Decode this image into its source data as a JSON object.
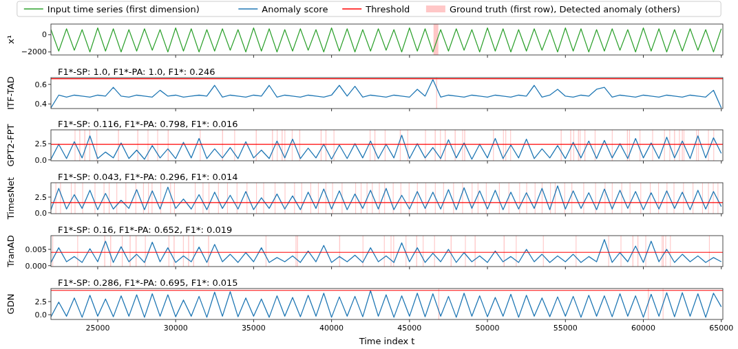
{
  "chart_data": [
    {
      "type": "line",
      "ylabel": "x¹",
      "legend": "top",
      "tick_labels": "y",
      "xlim": [
        22000,
        65100
      ],
      "ylim": [
        -2350,
        1250
      ],
      "yticks": [
        {
          "value": -2000,
          "label": "−2000"
        },
        0
      ],
      "xticks": [
        25000,
        30000,
        35000,
        40000,
        45000,
        50000,
        55000,
        60000,
        65000
      ],
      "x": [
        22000,
        22500,
        23000,
        23500,
        24000,
        24500,
        25000,
        25500,
        26000,
        26500,
        27000,
        27500,
        28000,
        28500,
        29000,
        29500,
        30000,
        30500,
        31000,
        31500,
        32000,
        32500,
        33000,
        33500,
        34000,
        34500,
        35000,
        35500,
        36000,
        36500,
        37000,
        37500,
        38000,
        38500,
        39000,
        39500,
        40000,
        40500,
        41000,
        41500,
        42000,
        42500,
        43000,
        43500,
        44000,
        44500,
        45000,
        45500,
        46000,
        46500,
        47000,
        47500,
        48000,
        48500,
        49000,
        49500,
        50000,
        50500,
        51000,
        51500,
        52000,
        52500,
        53000,
        53500,
        54000,
        54500,
        55000,
        55500,
        56000,
        56500,
        57000,
        57500,
        58000,
        58500,
        59000,
        59500,
        60000,
        60500,
        61000,
        61500,
        62000,
        62500,
        63000,
        63500,
        64000,
        64500,
        65000
      ],
      "series": [
        {
          "name": "Input time series (first dimension)",
          "color": "#2ca02c",
          "values": [
            600,
            -1900,
            700,
            -1800,
            600,
            -2000,
            800,
            -1900,
            700,
            -2000,
            600,
            -1900,
            700,
            -1800,
            600,
            -2000,
            800,
            -1900,
            700,
            -2000,
            600,
            -1900,
            700,
            -1800,
            600,
            -2000,
            800,
            -1900,
            700,
            -2000,
            600,
            -1900,
            700,
            -1800,
            600,
            -2000,
            800,
            -1900,
            700,
            -2000,
            600,
            -1900,
            700,
            -1800,
            600,
            -2000,
            800,
            -1900,
            700,
            -2000,
            600,
            -1900,
            700,
            -1800,
            600,
            -2000,
            800,
            -1900,
            700,
            -2000,
            600,
            -1900,
            700,
            -1800,
            600,
            -2000,
            800,
            -1900,
            700,
            -2000,
            600,
            -1900,
            700,
            -1800,
            600,
            -2000,
            800,
            -1900,
            700,
            -2000,
            600,
            -1900,
            700,
            -1800,
            600,
            -2000,
            700
          ]
        }
      ],
      "bands": [
        {
          "axis": "x",
          "from": 46540,
          "to": 46850,
          "label": "Ground truth (first row), Detected anomaly (others)"
        }
      ]
    },
    {
      "type": "line",
      "title": "F1*-SP: 1.0, F1*-PA: 1.0, F1*: 0.246",
      "ylabel": "ITF-TAD",
      "legend": "top",
      "tick_labels": "y",
      "xlim": [
        22000,
        65100
      ],
      "ylim": [
        0.353,
        0.669
      ],
      "yticks": [
        0.4,
        0.6
      ],
      "xticks": [
        25000,
        30000,
        35000,
        40000,
        45000,
        50000,
        55000,
        60000,
        65000
      ],
      "x": [
        22000,
        22500,
        23000,
        23500,
        24000,
        24500,
        25000,
        25500,
        26000,
        26500,
        27000,
        27500,
        28000,
        28500,
        29000,
        29500,
        30000,
        30500,
        31000,
        31500,
        32000,
        32500,
        33000,
        33500,
        34000,
        34500,
        35000,
        35500,
        36000,
        36500,
        37000,
        37500,
        38000,
        38500,
        39000,
        39500,
        40000,
        40500,
        41000,
        41500,
        42000,
        42500,
        43000,
        43500,
        44000,
        44500,
        45000,
        45500,
        46000,
        46500,
        47000,
        47500,
        48000,
        48500,
        49000,
        49500,
        50000,
        50500,
        51000,
        51500,
        52000,
        52500,
        53000,
        53500,
        54000,
        54500,
        55000,
        55500,
        56000,
        56500,
        57000,
        57500,
        58000,
        58500,
        59000,
        59500,
        60000,
        60500,
        61000,
        61500,
        62000,
        62500,
        63000,
        63500,
        64000,
        64500,
        65000
      ],
      "series": [
        {
          "name": "Anomaly score",
          "color": "#1f77b4",
          "values": [
            0.36,
            0.49,
            0.47,
            0.49,
            0.48,
            0.47,
            0.49,
            0.48,
            0.57,
            0.48,
            0.47,
            0.49,
            0.48,
            0.47,
            0.54,
            0.48,
            0.49,
            0.47,
            0.48,
            0.49,
            0.48,
            0.59,
            0.47,
            0.49,
            0.48,
            0.47,
            0.49,
            0.48,
            0.59,
            0.47,
            0.49,
            0.48,
            0.47,
            0.49,
            0.48,
            0.47,
            0.49,
            0.59,
            0.48,
            0.58,
            0.47,
            0.49,
            0.48,
            0.47,
            0.49,
            0.48,
            0.47,
            0.55,
            0.48,
            0.65,
            0.47,
            0.49,
            0.48,
            0.47,
            0.49,
            0.48,
            0.47,
            0.49,
            0.48,
            0.47,
            0.49,
            0.48,
            0.59,
            0.47,
            0.49,
            0.55,
            0.48,
            0.47,
            0.49,
            0.48,
            0.55,
            0.57,
            0.47,
            0.49,
            0.48,
            0.47,
            0.49,
            0.48,
            0.47,
            0.49,
            0.48,
            0.47,
            0.49,
            0.48,
            0.47,
            0.54,
            0.36
          ]
        }
      ],
      "ref_lines": [
        {
          "axis": "y",
          "value": 0.657,
          "label": "Threshold",
          "color": "#ff0000"
        }
      ],
      "bands": [
        {
          "axis": "x",
          "from": 46710,
          "to": 46770
        }
      ]
    },
    {
      "type": "line",
      "title": "F1*-SP: 0.116, F1*-PA: 0.798, F1*: 0.016",
      "ylabel": "GPT2-FPT",
      "tick_labels": "y",
      "xlim": [
        22000,
        65100
      ],
      "ylim": [
        -0.14,
        4.63
      ],
      "yticks": [
        {
          "value": 0,
          "label": "0.0"
        },
        2.5
      ],
      "xticks": [
        25000,
        30000,
        35000,
        40000,
        45000,
        50000,
        55000,
        60000,
        65000
      ],
      "x": [
        22000,
        22500,
        23000,
        23500,
        24000,
        24500,
        25000,
        25500,
        26000,
        26500,
        27000,
        27500,
        28000,
        28500,
        29000,
        29500,
        30000,
        30500,
        31000,
        31500,
        32000,
        32500,
        33000,
        33500,
        34000,
        34500,
        35000,
        35500,
        36000,
        36500,
        37000,
        37500,
        38000,
        38500,
        39000,
        39500,
        40000,
        40500,
        41000,
        41500,
        42000,
        42500,
        43000,
        43500,
        44000,
        44500,
        45000,
        45500,
        46000,
        46500,
        47000,
        47500,
        48000,
        48500,
        49000,
        49500,
        50000,
        50500,
        51000,
        51500,
        52000,
        52500,
        53000,
        53500,
        54000,
        54500,
        55000,
        55500,
        56000,
        56500,
        57000,
        57500,
        58000,
        58500,
        59000,
        59500,
        60000,
        60500,
        61000,
        61500,
        62000,
        62500,
        63000,
        63500,
        64000,
        64500,
        65000
      ],
      "series": [
        {
          "color": "#1f77b4",
          "values": [
            0.1,
            2.4,
            0.2,
            2.8,
            0.3,
            3.7,
            0.2,
            1.2,
            0.3,
            2.6,
            0.2,
            1.5,
            0.1,
            2.2,
            0.3,
            1.7,
            0.2,
            2.7,
            0.3,
            3.3,
            0.2,
            1.7,
            0.3,
            1.9,
            0.2,
            2.8,
            0.3,
            1.5,
            0.2,
            2.9,
            0.3,
            3.2,
            0.2,
            1.8,
            0.3,
            2.4,
            0.1,
            2.3,
            0.2,
            2.5,
            0.3,
            2.9,
            0.2,
            2.4,
            0.3,
            3.8,
            0.2,
            2.5,
            0.3,
            1.9,
            0.2,
            3.1,
            0.3,
            2.6,
            0.1,
            2.4,
            0.3,
            3.3,
            0.2,
            2.3,
            0.3,
            3.2,
            0.2,
            1.7,
            0.3,
            2.2,
            0.2,
            2.7,
            0.3,
            2.9,
            0.2,
            3.0,
            0.3,
            2.5,
            0.2,
            3.3,
            0.3,
            2.6,
            0.2,
            3.5,
            0.3,
            2.9,
            0.2,
            3.7,
            0.3,
            3.4,
            1.0
          ]
        }
      ],
      "ref_lines": [
        {
          "axis": "y",
          "value": 2.4,
          "color": "#ff0000"
        }
      ],
      "bands": [
        {
          "axis": "x",
          "from": 23520,
          "to": 23570
        },
        {
          "axis": "x",
          "from": 23820,
          "to": 23880
        },
        {
          "axis": "x",
          "from": 24140,
          "to": 24200
        },
        {
          "axis": "x",
          "from": 24460,
          "to": 24520
        },
        {
          "axis": "x",
          "from": 24920,
          "to": 24970
        },
        {
          "axis": "x",
          "from": 26300,
          "to": 26360
        },
        {
          "axis": "x",
          "from": 27540,
          "to": 27600
        },
        {
          "axis": "x",
          "from": 28200,
          "to": 28250
        },
        {
          "axis": "x",
          "from": 28820,
          "to": 28870
        },
        {
          "axis": "x",
          "from": 29490,
          "to": 29550
        },
        {
          "axis": "x",
          "from": 31550,
          "to": 31600
        },
        {
          "axis": "x",
          "from": 32980,
          "to": 33040
        },
        {
          "axis": "x",
          "from": 33760,
          "to": 33810
        },
        {
          "axis": "x",
          "from": 35140,
          "to": 35200
        },
        {
          "axis": "x",
          "from": 36180,
          "to": 36240
        },
        {
          "axis": "x",
          "from": 36490,
          "to": 36540
        },
        {
          "axis": "x",
          "from": 36800,
          "to": 36860
        },
        {
          "axis": "x",
          "from": 36980,
          "to": 37030
        },
        {
          "axis": "x",
          "from": 37450,
          "to": 37500
        },
        {
          "axis": "x",
          "from": 37930,
          "to": 37990
        },
        {
          "axis": "x",
          "from": 39300,
          "to": 39360
        },
        {
          "axis": "x",
          "from": 39610,
          "to": 39670
        },
        {
          "axis": "x",
          "from": 40130,
          "to": 40180
        },
        {
          "axis": "x",
          "from": 42450,
          "to": 42500
        },
        {
          "axis": "x",
          "from": 42750,
          "to": 42810
        },
        {
          "axis": "x",
          "from": 43410,
          "to": 43460
        },
        {
          "axis": "x",
          "from": 44380,
          "to": 44440
        },
        {
          "axis": "x",
          "from": 44860,
          "to": 44910
        },
        {
          "axis": "x",
          "from": 46000,
          "to": 46050
        },
        {
          "axis": "x",
          "from": 46620,
          "to": 46680
        },
        {
          "axis": "x",
          "from": 46960,
          "to": 47010
        },
        {
          "axis": "x",
          "from": 47260,
          "to": 47320
        },
        {
          "axis": "x",
          "from": 47900,
          "to": 47960
        },
        {
          "axis": "x",
          "from": 48380,
          "to": 48430
        },
        {
          "axis": "x",
          "from": 48510,
          "to": 48570
        },
        {
          "axis": "x",
          "from": 50360,
          "to": 50410
        },
        {
          "axis": "x",
          "from": 51000,
          "to": 51050
        },
        {
          "axis": "x",
          "from": 51150,
          "to": 51200
        },
        {
          "axis": "x",
          "from": 51460,
          "to": 51510
        },
        {
          "axis": "x",
          "from": 54700,
          "to": 54760
        },
        {
          "axis": "x",
          "from": 55310,
          "to": 55370
        },
        {
          "axis": "x",
          "from": 55510,
          "to": 55560
        },
        {
          "axis": "x",
          "from": 55810,
          "to": 55870
        },
        {
          "axis": "x",
          "from": 55920,
          "to": 55970
        },
        {
          "axis": "x",
          "from": 56220,
          "to": 56280
        },
        {
          "axis": "x",
          "from": 56880,
          "to": 56930
        },
        {
          "axis": "x",
          "from": 57980,
          "to": 58030
        },
        {
          "axis": "x",
          "from": 58950,
          "to": 59010
        },
        {
          "axis": "x",
          "from": 59090,
          "to": 59140
        },
        {
          "axis": "x",
          "from": 59760,
          "to": 59810
        },
        {
          "axis": "x",
          "from": 60570,
          "to": 60620
        },
        {
          "axis": "x",
          "from": 61330,
          "to": 61380
        },
        {
          "axis": "x",
          "from": 61670,
          "to": 61720
        },
        {
          "axis": "x",
          "from": 61970,
          "to": 62030
        },
        {
          "axis": "x",
          "from": 62290,
          "to": 62340
        },
        {
          "axis": "x",
          "from": 62470,
          "to": 62530
        },
        {
          "axis": "x",
          "from": 62580,
          "to": 62630
        },
        {
          "axis": "x",
          "from": 63390,
          "to": 63440
        },
        {
          "axis": "x",
          "from": 63510,
          "to": 63560
        },
        {
          "axis": "x",
          "from": 64150,
          "to": 64200
        },
        {
          "axis": "x",
          "from": 64490,
          "to": 64540
        }
      ]
    },
    {
      "type": "line",
      "title": "F1*-SP: 0.043, F1*-PA: 0.296, F1*: 0.014",
      "ylabel": "TimesNet",
      "tick_labels": "y",
      "xlim": [
        22000,
        65100
      ],
      "ylim": [
        -0.14,
        4.8
      ],
      "yticks": [
        {
          "value": 0,
          "label": "0.0"
        },
        2.5
      ],
      "xticks": [
        25000,
        30000,
        35000,
        40000,
        45000,
        50000,
        55000,
        60000,
        65000
      ],
      "x": [
        22000,
        22500,
        23000,
        23500,
        24000,
        24500,
        25000,
        25500,
        26000,
        26500,
        27000,
        27500,
        28000,
        28500,
        29000,
        29500,
        30000,
        30500,
        31000,
        31500,
        32000,
        32500,
        33000,
        33500,
        34000,
        34500,
        35000,
        35500,
        36000,
        36500,
        37000,
        37500,
        38000,
        38500,
        39000,
        39500,
        40000,
        40500,
        41000,
        41500,
        42000,
        42500,
        43000,
        43500,
        44000,
        44500,
        45000,
        45500,
        46000,
        46500,
        47000,
        47500,
        48000,
        48500,
        49000,
        49500,
        50000,
        50500,
        51000,
        51500,
        52000,
        52500,
        53000,
        53500,
        54000,
        54500,
        55000,
        55500,
        56000,
        56500,
        57000,
        57500,
        58000,
        58500,
        59000,
        59500,
        60000,
        60500,
        61000,
        61500,
        62000,
        62500,
        63000,
        63500,
        64000,
        64500,
        65000
      ],
      "series": [
        {
          "color": "#1f77b4",
          "values": [
            0.5,
            3.9,
            0.6,
            2.9,
            0.7,
            3.6,
            0.5,
            3.1,
            0.6,
            2.0,
            0.7,
            3.7,
            0.5,
            3.5,
            0.6,
            4.1,
            0.7,
            2.2,
            0.6,
            2.9,
            0.5,
            3.3,
            0.7,
            2.8,
            0.6,
            3.4,
            0.5,
            2.4,
            0.7,
            3.0,
            0.6,
            2.7,
            0.5,
            3.3,
            0.7,
            3.8,
            0.6,
            3.5,
            0.5,
            3.0,
            0.7,
            3.6,
            0.6,
            3.9,
            0.5,
            2.8,
            0.6,
            3.4,
            0.7,
            3.3,
            0.6,
            3.7,
            0.5,
            4.0,
            0.7,
            3.5,
            0.6,
            3.6,
            0.5,
            3.3,
            0.6,
            3.2,
            0.7,
            3.9,
            0.5,
            4.3,
            0.6,
            3.5,
            0.7,
            3.2,
            0.5,
            3.8,
            0.6,
            3.6,
            0.7,
            3.4,
            0.5,
            3.2,
            0.6,
            3.5,
            0.7,
            3.3,
            0.5,
            3.6,
            0.6,
            3.4,
            1.0
          ]
        }
      ],
      "ref_lines": [
        {
          "axis": "y",
          "value": 1.63,
          "color": "#ff0000"
        }
      ],
      "bands": [
        {
          "axis": "x",
          "from": 22290,
          "to": 22340
        },
        {
          "axis": "x",
          "from": 22590,
          "to": 22640
        },
        {
          "axis": "x",
          "from": 23280,
          "to": 23330
        },
        {
          "axis": "x",
          "from": 23520,
          "to": 23570
        },
        {
          "axis": "x",
          "from": 24010,
          "to": 24060
        },
        {
          "axis": "x",
          "from": 24800,
          "to": 24850
        },
        {
          "axis": "x",
          "from": 25380,
          "to": 25430
        },
        {
          "axis": "x",
          "from": 25710,
          "to": 25760
        },
        {
          "axis": "x",
          "from": 26200,
          "to": 26250
        },
        {
          "axis": "x",
          "from": 26780,
          "to": 26830
        },
        {
          "axis": "x",
          "from": 27420,
          "to": 27470
        },
        {
          "axis": "x",
          "from": 27910,
          "to": 27960
        },
        {
          "axis": "x",
          "from": 28230,
          "to": 28280
        },
        {
          "axis": "x",
          "from": 28460,
          "to": 28510
        },
        {
          "axis": "x",
          "from": 29020,
          "to": 29070
        },
        {
          "axis": "x",
          "from": 29650,
          "to": 29700
        },
        {
          "axis": "x",
          "from": 29900,
          "to": 29950
        },
        {
          "axis": "x",
          "from": 31230,
          "to": 31280
        },
        {
          "axis": "x",
          "from": 31730,
          "to": 31780
        },
        {
          "axis": "x",
          "from": 32110,
          "to": 32160
        },
        {
          "axis": "x",
          "from": 32720,
          "to": 32770
        },
        {
          "axis": "x",
          "from": 33300,
          "to": 33350
        },
        {
          "axis": "x",
          "from": 33910,
          "to": 33960
        },
        {
          "axis": "x",
          "from": 34550,
          "to": 34600
        },
        {
          "axis": "x",
          "from": 35160,
          "to": 35210
        },
        {
          "axis": "x",
          "from": 35620,
          "to": 35670
        },
        {
          "axis": "x",
          "from": 36350,
          "to": 36400
        },
        {
          "axis": "x",
          "from": 36990,
          "to": 37040
        },
        {
          "axis": "x",
          "from": 37600,
          "to": 37650
        },
        {
          "axis": "x",
          "from": 38060,
          "to": 38110
        },
        {
          "axis": "x",
          "from": 38640,
          "to": 38690
        },
        {
          "axis": "x",
          "from": 39130,
          "to": 39180
        },
        {
          "axis": "x",
          "from": 39610,
          "to": 39660
        },
        {
          "axis": "x",
          "from": 40040,
          "to": 40090
        },
        {
          "axis": "x",
          "from": 40650,
          "to": 40700
        },
        {
          "axis": "x",
          "from": 41520,
          "to": 41570
        },
        {
          "axis": "x",
          "from": 41870,
          "to": 41920
        },
        {
          "axis": "x",
          "from": 42250,
          "to": 42300
        },
        {
          "axis": "x",
          "from": 42590,
          "to": 42640
        },
        {
          "axis": "x",
          "from": 43040,
          "to": 43090
        },
        {
          "axis": "x",
          "from": 43380,
          "to": 43430
        },
        {
          "axis": "x",
          "from": 43930,
          "to": 43980
        },
        {
          "axis": "x",
          "from": 44420,
          "to": 44470
        },
        {
          "axis": "x",
          "from": 44950,
          "to": 45000
        },
        {
          "axis": "x",
          "from": 45480,
          "to": 45530
        },
        {
          "axis": "x",
          "from": 46020,
          "to": 46070
        },
        {
          "axis": "x",
          "from": 46630,
          "to": 46680
        },
        {
          "axis": "x",
          "from": 47160,
          "to": 47210
        },
        {
          "axis": "x",
          "from": 47800,
          "to": 47850
        },
        {
          "axis": "x",
          "from": 48380,
          "to": 48430
        },
        {
          "axis": "x",
          "from": 48990,
          "to": 49040
        },
        {
          "axis": "x",
          "from": 49370,
          "to": 49420
        },
        {
          "axis": "x",
          "from": 49900,
          "to": 49950
        },
        {
          "axis": "x",
          "from": 50740,
          "to": 50790
        },
        {
          "axis": "x",
          "from": 51350,
          "to": 51400
        },
        {
          "axis": "x",
          "from": 52040,
          "to": 52090
        },
        {
          "axis": "x",
          "from": 52490,
          "to": 52540
        },
        {
          "axis": "x",
          "from": 53030,
          "to": 53080
        },
        {
          "axis": "x",
          "from": 53480,
          "to": 53530
        },
        {
          "axis": "x",
          "from": 54020,
          "to": 54070
        },
        {
          "axis": "x",
          "from": 54320,
          "to": 54370
        },
        {
          "axis": "x",
          "from": 54930,
          "to": 54980
        },
        {
          "axis": "x",
          "from": 55390,
          "to": 55440
        },
        {
          "axis": "x",
          "from": 56150,
          "to": 56200
        },
        {
          "axis": "x",
          "from": 56910,
          "to": 56960
        },
        {
          "axis": "x",
          "from": 57520,
          "to": 57570
        },
        {
          "axis": "x",
          "from": 57980,
          "to": 58030
        },
        {
          "axis": "x",
          "from": 58590,
          "to": 58640
        },
        {
          "axis": "x",
          "from": 59120,
          "to": 59170
        },
        {
          "axis": "x",
          "from": 59810,
          "to": 59860
        },
        {
          "axis": "x",
          "from": 60420,
          "to": 60470
        },
        {
          "axis": "x",
          "from": 60950,
          "to": 61000
        },
        {
          "axis": "x",
          "from": 61490,
          "to": 61540
        },
        {
          "axis": "x",
          "from": 61940,
          "to": 61990
        },
        {
          "axis": "x",
          "from": 62550,
          "to": 62600
        },
        {
          "axis": "x",
          "from": 63160,
          "to": 63210
        },
        {
          "axis": "x",
          "from": 63770,
          "to": 63820
        },
        {
          "axis": "x",
          "from": 64150,
          "to": 64200
        },
        {
          "axis": "x",
          "from": 64460,
          "to": 64510
        },
        {
          "axis": "x",
          "from": 64760,
          "to": 64810
        }
      ]
    },
    {
      "type": "line",
      "title": "F1*-SP: 0.16, F1*-PA: 0.652, F1*: 0.019",
      "ylabel": "TranAD",
      "tick_labels": "y",
      "xlim": [
        22000,
        65100
      ],
      "ylim": [
        -0.00027,
        0.0092
      ],
      "yticks": [
        {
          "value": 0,
          "label": "0.000"
        },
        {
          "value": 0.005,
          "label": "0.005"
        }
      ],
      "xticks": [
        25000,
        30000,
        35000,
        40000,
        45000,
        50000,
        55000,
        60000,
        65000
      ],
      "x": [
        22000,
        22500,
        23000,
        23500,
        24000,
        24500,
        25000,
        25500,
        26000,
        26500,
        27000,
        27500,
        28000,
        28500,
        29000,
        29500,
        30000,
        30500,
        31000,
        31500,
        32000,
        32500,
        33000,
        33500,
        34000,
        34500,
        35000,
        35500,
        36000,
        36500,
        37000,
        37500,
        38000,
        38500,
        39000,
        39500,
        40000,
        40500,
        41000,
        41500,
        42000,
        42500,
        43000,
        43500,
        44000,
        44500,
        45000,
        45500,
        46000,
        46500,
        47000,
        47500,
        48000,
        48500,
        49000,
        49500,
        50000,
        50500,
        51000,
        51500,
        52000,
        52500,
        53000,
        53500,
        54000,
        54500,
        55000,
        55500,
        56000,
        56500,
        57000,
        57500,
        58000,
        58500,
        59000,
        59500,
        60000,
        60500,
        61000,
        61500,
        62000,
        62500,
        63000,
        63500,
        64000,
        64500,
        65000
      ],
      "series": [
        {
          "color": "#1f77b4",
          "values": [
            0.001,
            0.0055,
            0.0012,
            0.0028,
            0.001,
            0.0052,
            0.0012,
            0.0075,
            0.001,
            0.0058,
            0.0012,
            0.0035,
            0.001,
            0.0072,
            0.0012,
            0.0055,
            0.001,
            0.003,
            0.0012,
            0.0057,
            0.001,
            0.0065,
            0.0012,
            0.0035,
            0.001,
            0.004,
            0.0012,
            0.0055,
            0.001,
            0.0025,
            0.0012,
            0.003,
            0.001,
            0.0045,
            0.0012,
            0.0062,
            0.001,
            0.0028,
            0.0012,
            0.0032,
            0.001,
            0.0055,
            0.0012,
            0.003,
            0.001,
            0.007,
            0.0012,
            0.0055,
            0.001,
            0.0038,
            0.0012,
            0.005,
            0.001,
            0.004,
            0.0012,
            0.003,
            0.001,
            0.0045,
            0.0012,
            0.0028,
            0.001,
            0.005,
            0.0012,
            0.0035,
            0.001,
            0.003,
            0.0012,
            0.0035,
            0.001,
            0.0028,
            0.0012,
            0.008,
            0.001,
            0.004,
            0.0012,
            0.006,
            0.001,
            0.0075,
            0.0012,
            0.005,
            0.001,
            0.0035,
            0.0012,
            0.003,
            0.001,
            0.0025,
            0.0012
          ]
        }
      ],
      "ref_lines": [
        {
          "axis": "y",
          "value": 0.0041,
          "color": "#ff0000"
        }
      ],
      "bands": [
        {
          "axis": "x",
          "from": 22090,
          "to": 22140
        },
        {
          "axis": "x",
          "from": 23690,
          "to": 23740
        },
        {
          "axis": "x",
          "from": 25420,
          "to": 25480
        },
        {
          "axis": "x",
          "from": 25800,
          "to": 25860
        },
        {
          "axis": "x",
          "from": 26550,
          "to": 26600
        },
        {
          "axis": "x",
          "from": 27050,
          "to": 27110
        },
        {
          "axis": "x",
          "from": 27430,
          "to": 27490
        },
        {
          "axis": "x",
          "from": 28030,
          "to": 28080
        },
        {
          "axis": "x",
          "from": 29540,
          "to": 29590
        },
        {
          "axis": "x",
          "from": 29870,
          "to": 29930
        },
        {
          "axis": "x",
          "from": 30470,
          "to": 30520
        },
        {
          "axis": "x",
          "from": 30800,
          "to": 30860
        },
        {
          "axis": "x",
          "from": 31120,
          "to": 31180
        },
        {
          "axis": "x",
          "from": 32080,
          "to": 32140
        },
        {
          "axis": "x",
          "from": 35770,
          "to": 35820
        },
        {
          "axis": "x",
          "from": 37690,
          "to": 37740
        },
        {
          "axis": "x",
          "from": 37780,
          "to": 37840
        },
        {
          "axis": "x",
          "from": 40490,
          "to": 40550
        },
        {
          "axis": "x",
          "from": 41990,
          "to": 42040
        },
        {
          "axis": "x",
          "from": 43360,
          "to": 43410
        },
        {
          "axis": "x",
          "from": 43790,
          "to": 43840
        },
        {
          "axis": "x",
          "from": 43960,
          "to": 44010
        },
        {
          "axis": "x",
          "from": 44750,
          "to": 44800
        },
        {
          "axis": "x",
          "from": 45430,
          "to": 45490
        },
        {
          "axis": "x",
          "from": 45850,
          "to": 45900
        },
        {
          "axis": "x",
          "from": 46580,
          "to": 46630
        },
        {
          "axis": "x",
          "from": 47640,
          "to": 47700
        },
        {
          "axis": "x",
          "from": 48560,
          "to": 48610
        },
        {
          "axis": "x",
          "from": 49180,
          "to": 49240
        },
        {
          "axis": "x",
          "from": 51040,
          "to": 51100
        },
        {
          "axis": "x",
          "from": 51820,
          "to": 51870
        },
        {
          "axis": "x",
          "from": 53560,
          "to": 53610
        },
        {
          "axis": "x",
          "from": 55660,
          "to": 55710
        },
        {
          "axis": "x",
          "from": 57750,
          "to": 57800
        },
        {
          "axis": "x",
          "from": 58540,
          "to": 58590
        },
        {
          "axis": "x",
          "from": 59300,
          "to": 59360
        },
        {
          "axis": "x",
          "from": 59620,
          "to": 59680
        },
        {
          "axis": "x",
          "from": 60130,
          "to": 60180
        },
        {
          "axis": "x",
          "from": 61180,
          "to": 61230
        },
        {
          "axis": "x",
          "from": 61255,
          "to": 61305
        },
        {
          "axis": "x",
          "from": 61410,
          "to": 61460
        },
        {
          "axis": "x",
          "from": 61710,
          "to": 61760
        },
        {
          "axis": "x",
          "from": 64210,
          "to": 64260
        }
      ]
    },
    {
      "type": "line",
      "title": "F1*-SP: 0.286, F1*-PA: 0.695, F1*: 0.015",
      "ylabel": "GDN",
      "xlabel": "Time index t",
      "xlim": [
        22000,
        65100
      ],
      "ylim": [
        -0.91,
        4.99
      ],
      "yticks": [
        {
          "value": 0,
          "label": "0.0"
        },
        2.5
      ],
      "xticks": [
        25000,
        30000,
        35000,
        40000,
        45000,
        50000,
        55000,
        60000,
        65000
      ],
      "x": [
        22000,
        22500,
        23000,
        23500,
        24000,
        24500,
        25000,
        25500,
        26000,
        26500,
        27000,
        27500,
        28000,
        28500,
        29000,
        29500,
        30000,
        30500,
        31000,
        31500,
        32000,
        32500,
        33000,
        33500,
        34000,
        34500,
        35000,
        35500,
        36000,
        36500,
        37000,
        37500,
        38000,
        38500,
        39000,
        39500,
        40000,
        40500,
        41000,
        41500,
        42000,
        42500,
        43000,
        43500,
        44000,
        44500,
        45000,
        45500,
        46000,
        46500,
        47000,
        47500,
        48000,
        48500,
        49000,
        49500,
        50000,
        50500,
        51000,
        51500,
        52000,
        52500,
        53000,
        53500,
        54000,
        54500,
        55000,
        55500,
        56000,
        56500,
        57000,
        57500,
        58000,
        58500,
        59000,
        59500,
        60000,
        60500,
        61000,
        61500,
        62000,
        62500,
        63000,
        63500,
        64000,
        64500,
        65000
      ],
      "series": [
        {
          "color": "#1f77b4",
          "values": [
            -0.4,
            2.4,
            -0.3,
            3.2,
            -0.5,
            3.7,
            -0.3,
            3.0,
            -0.4,
            3.6,
            -0.3,
            3.8,
            -0.5,
            4.0,
            -0.3,
            3.8,
            -0.4,
            2.8,
            -0.3,
            3.5,
            -0.5,
            4.3,
            -0.3,
            4.4,
            -0.4,
            3.2,
            -0.3,
            3.0,
            -0.5,
            3.6,
            -0.3,
            3.3,
            -0.4,
            3.7,
            -0.3,
            4.1,
            -0.5,
            3.4,
            -0.3,
            3.5,
            -0.4,
            4.6,
            -0.3,
            3.8,
            -0.5,
            3.6,
            -0.3,
            4.1,
            -0.4,
            4.0,
            -0.3,
            3.5,
            -0.5,
            4.1,
            -0.3,
            3.6,
            -0.4,
            3.3,
            -0.3,
            3.9,
            -0.5,
            3.7,
            -0.3,
            3.2,
            -0.4,
            3.4,
            -0.3,
            3.5,
            -0.5,
            3.7,
            -0.3,
            3.6,
            -0.4,
            4.0,
            -0.3,
            3.6,
            -0.5,
            3.9,
            -0.3,
            4.2,
            -0.4,
            4.2,
            -0.3,
            4.0,
            -0.5,
            4.1,
            1.5
          ]
        }
      ],
      "ref_lines": [
        {
          "axis": "y",
          "value": 4.63,
          "color": "#ff0000"
        }
      ],
      "bands": [
        {
          "axis": "x",
          "from": 46850,
          "to": 46910
        },
        {
          "axis": "x",
          "from": 60290,
          "to": 60350
        },
        {
          "axis": "x",
          "from": 61240,
          "to": 61290
        }
      ]
    }
  ]
}
